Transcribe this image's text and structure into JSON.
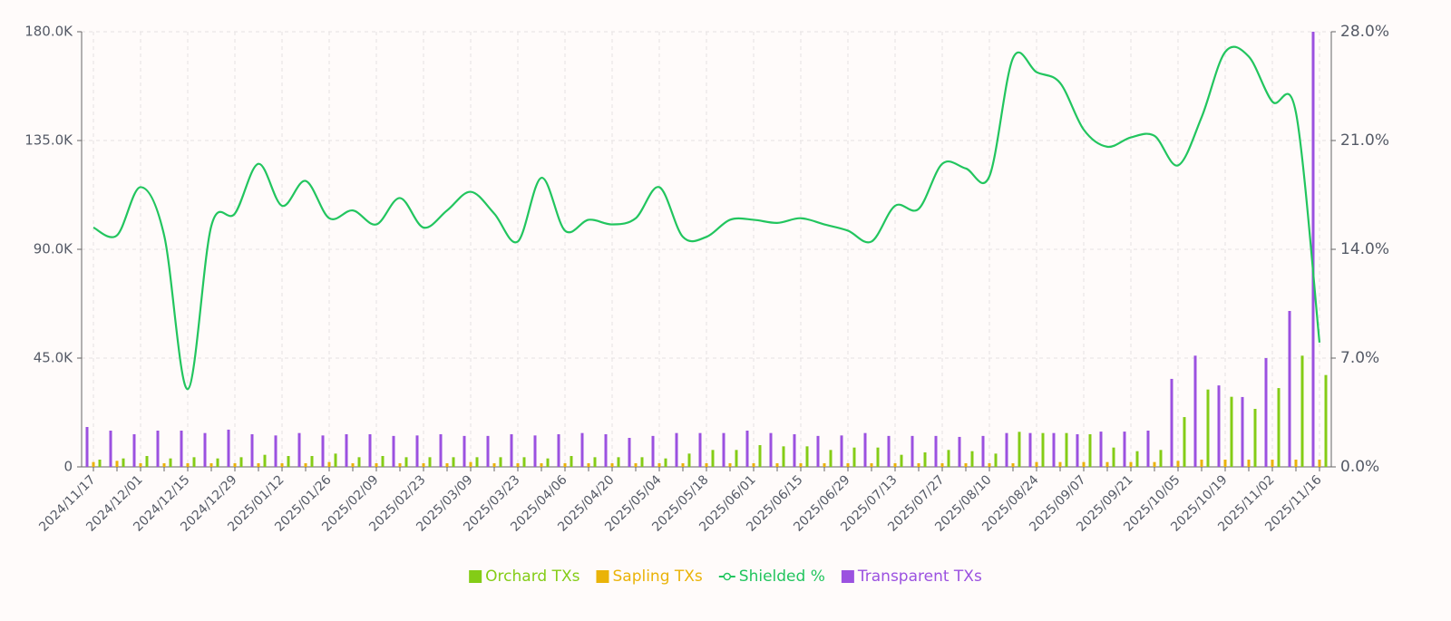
{
  "chart_data": {
    "type": "bar-line",
    "categories": [
      "2024/11/17",
      null,
      "2024/12/01",
      null,
      "2024/12/15",
      null,
      "2024/12/29",
      null,
      "2025/01/12",
      null,
      "2025/01/26",
      null,
      "2025/02/09",
      null,
      "2025/02/23",
      null,
      "2025/03/09",
      null,
      "2025/03/23",
      null,
      "2025/04/06",
      null,
      "2025/04/20",
      null,
      "2025/05/04",
      null,
      "2025/05/18",
      null,
      "2025/06/01",
      null,
      "2025/06/15",
      null,
      "2025/06/29",
      null,
      "2025/07/13",
      null,
      "2025/07/27",
      null,
      "2025/08/10",
      null,
      "2025/08/24",
      null,
      "2025/09/07",
      null,
      "2025/09/21",
      null,
      "2025/10/05",
      null,
      "2025/10/19",
      null,
      "2025/11/02",
      null,
      "2025/11/16"
    ],
    "series": [
      {
        "name": "Orchard TXs",
        "type": "bar",
        "color": "#84cc16",
        "values": [
          3000,
          3500,
          4500,
          3500,
          4000,
          3500,
          4000,
          5000,
          4500,
          4500,
          5500,
          4000,
          4500,
          4000,
          4000,
          4000,
          4000,
          4000,
          4000,
          3500,
          4500,
          4000,
          4000,
          4000,
          3500,
          5500,
          7000,
          7000,
          9000,
          8500,
          8500,
          7000,
          8000,
          8000,
          5000,
          6000,
          7000,
          6500,
          5500,
          14500,
          14000,
          14000,
          13500,
          8000,
          6500,
          7000,
          20600,
          32000,
          29000,
          24000,
          32600,
          46000,
          38000
        ]
      },
      {
        "name": "Sapling TXs",
        "type": "bar",
        "color": "#eab308",
        "values": [
          2000,
          2500,
          1500,
          1500,
          1500,
          1500,
          1500,
          1500,
          1500,
          1500,
          2000,
          1500,
          1500,
          1500,
          1500,
          1500,
          2000,
          1500,
          1500,
          1500,
          1500,
          1500,
          1500,
          1500,
          1500,
          1500,
          1500,
          1500,
          1500,
          1500,
          1500,
          1500,
          1500,
          1500,
          1500,
          1500,
          1500,
          1500,
          1500,
          1500,
          2000,
          2000,
          2000,
          2000,
          2000,
          2000,
          2500,
          3000,
          3000,
          3000,
          3000,
          3000,
          3000
        ]
      },
      {
        "name": "Shielded %",
        "type": "line",
        "axis": "y2",
        "color": "#22c55e",
        "values": [
          15.4,
          14.9,
          18.0,
          14.9,
          5.0,
          15.5,
          16.3,
          19.5,
          16.8,
          18.4,
          16.0,
          16.5,
          15.6,
          17.3,
          15.4,
          16.5,
          17.7,
          16.3,
          14.5,
          18.6,
          15.2,
          15.9,
          15.6,
          16.0,
          18.0,
          14.8,
          14.8,
          15.9,
          15.9,
          15.7,
          16.0,
          15.6,
          15.2,
          14.5,
          16.8,
          16.6,
          19.5,
          19.2,
          18.7,
          26.3,
          25.4,
          24.7,
          21.7,
          20.6,
          21.2,
          21.3,
          19.4,
          22.5,
          26.7,
          26.4,
          23.5,
          22.8,
          8.0
        ]
      },
      {
        "name": "Transparent TXs",
        "type": "bar",
        "color": "#9b51e0",
        "values": [
          16500,
          15000,
          13500,
          15000,
          15000,
          14000,
          15400,
          13500,
          13000,
          14000,
          13000,
          13500,
          13500,
          12800,
          13000,
          13500,
          12800,
          12800,
          13500,
          13000,
          13500,
          14000,
          13500,
          12000,
          12800,
          14000,
          14000,
          14000,
          15000,
          14000,
          13500,
          12800,
          13000,
          14000,
          12800,
          12800,
          12800,
          12400,
          12800,
          14000,
          14000,
          14000,
          13500,
          14600,
          14600,
          15000,
          36400,
          46000,
          33700,
          28900,
          45000,
          64500,
          180000
        ]
      }
    ],
    "ylim": [
      0,
      180000
    ],
    "yticks": [
      0,
      {
        "value": 45000,
        "label": "45.0K"
      },
      {
        "value": 90000,
        "label": "90.0K"
      },
      {
        "value": 135000,
        "label": "135.0K"
      },
      {
        "value": 180000,
        "label": "180.0K"
      }
    ],
    "y2lim": [
      0,
      28
    ],
    "y2ticks": [
      {
        "value": 0,
        "label": "0.0%"
      },
      {
        "value": 7,
        "label": "7.0%"
      },
      {
        "value": 14,
        "label": "14.0%"
      },
      {
        "value": 21,
        "label": "21.0%"
      },
      {
        "value": 28,
        "label": "28.0%"
      }
    ],
    "grid": true
  }
}
